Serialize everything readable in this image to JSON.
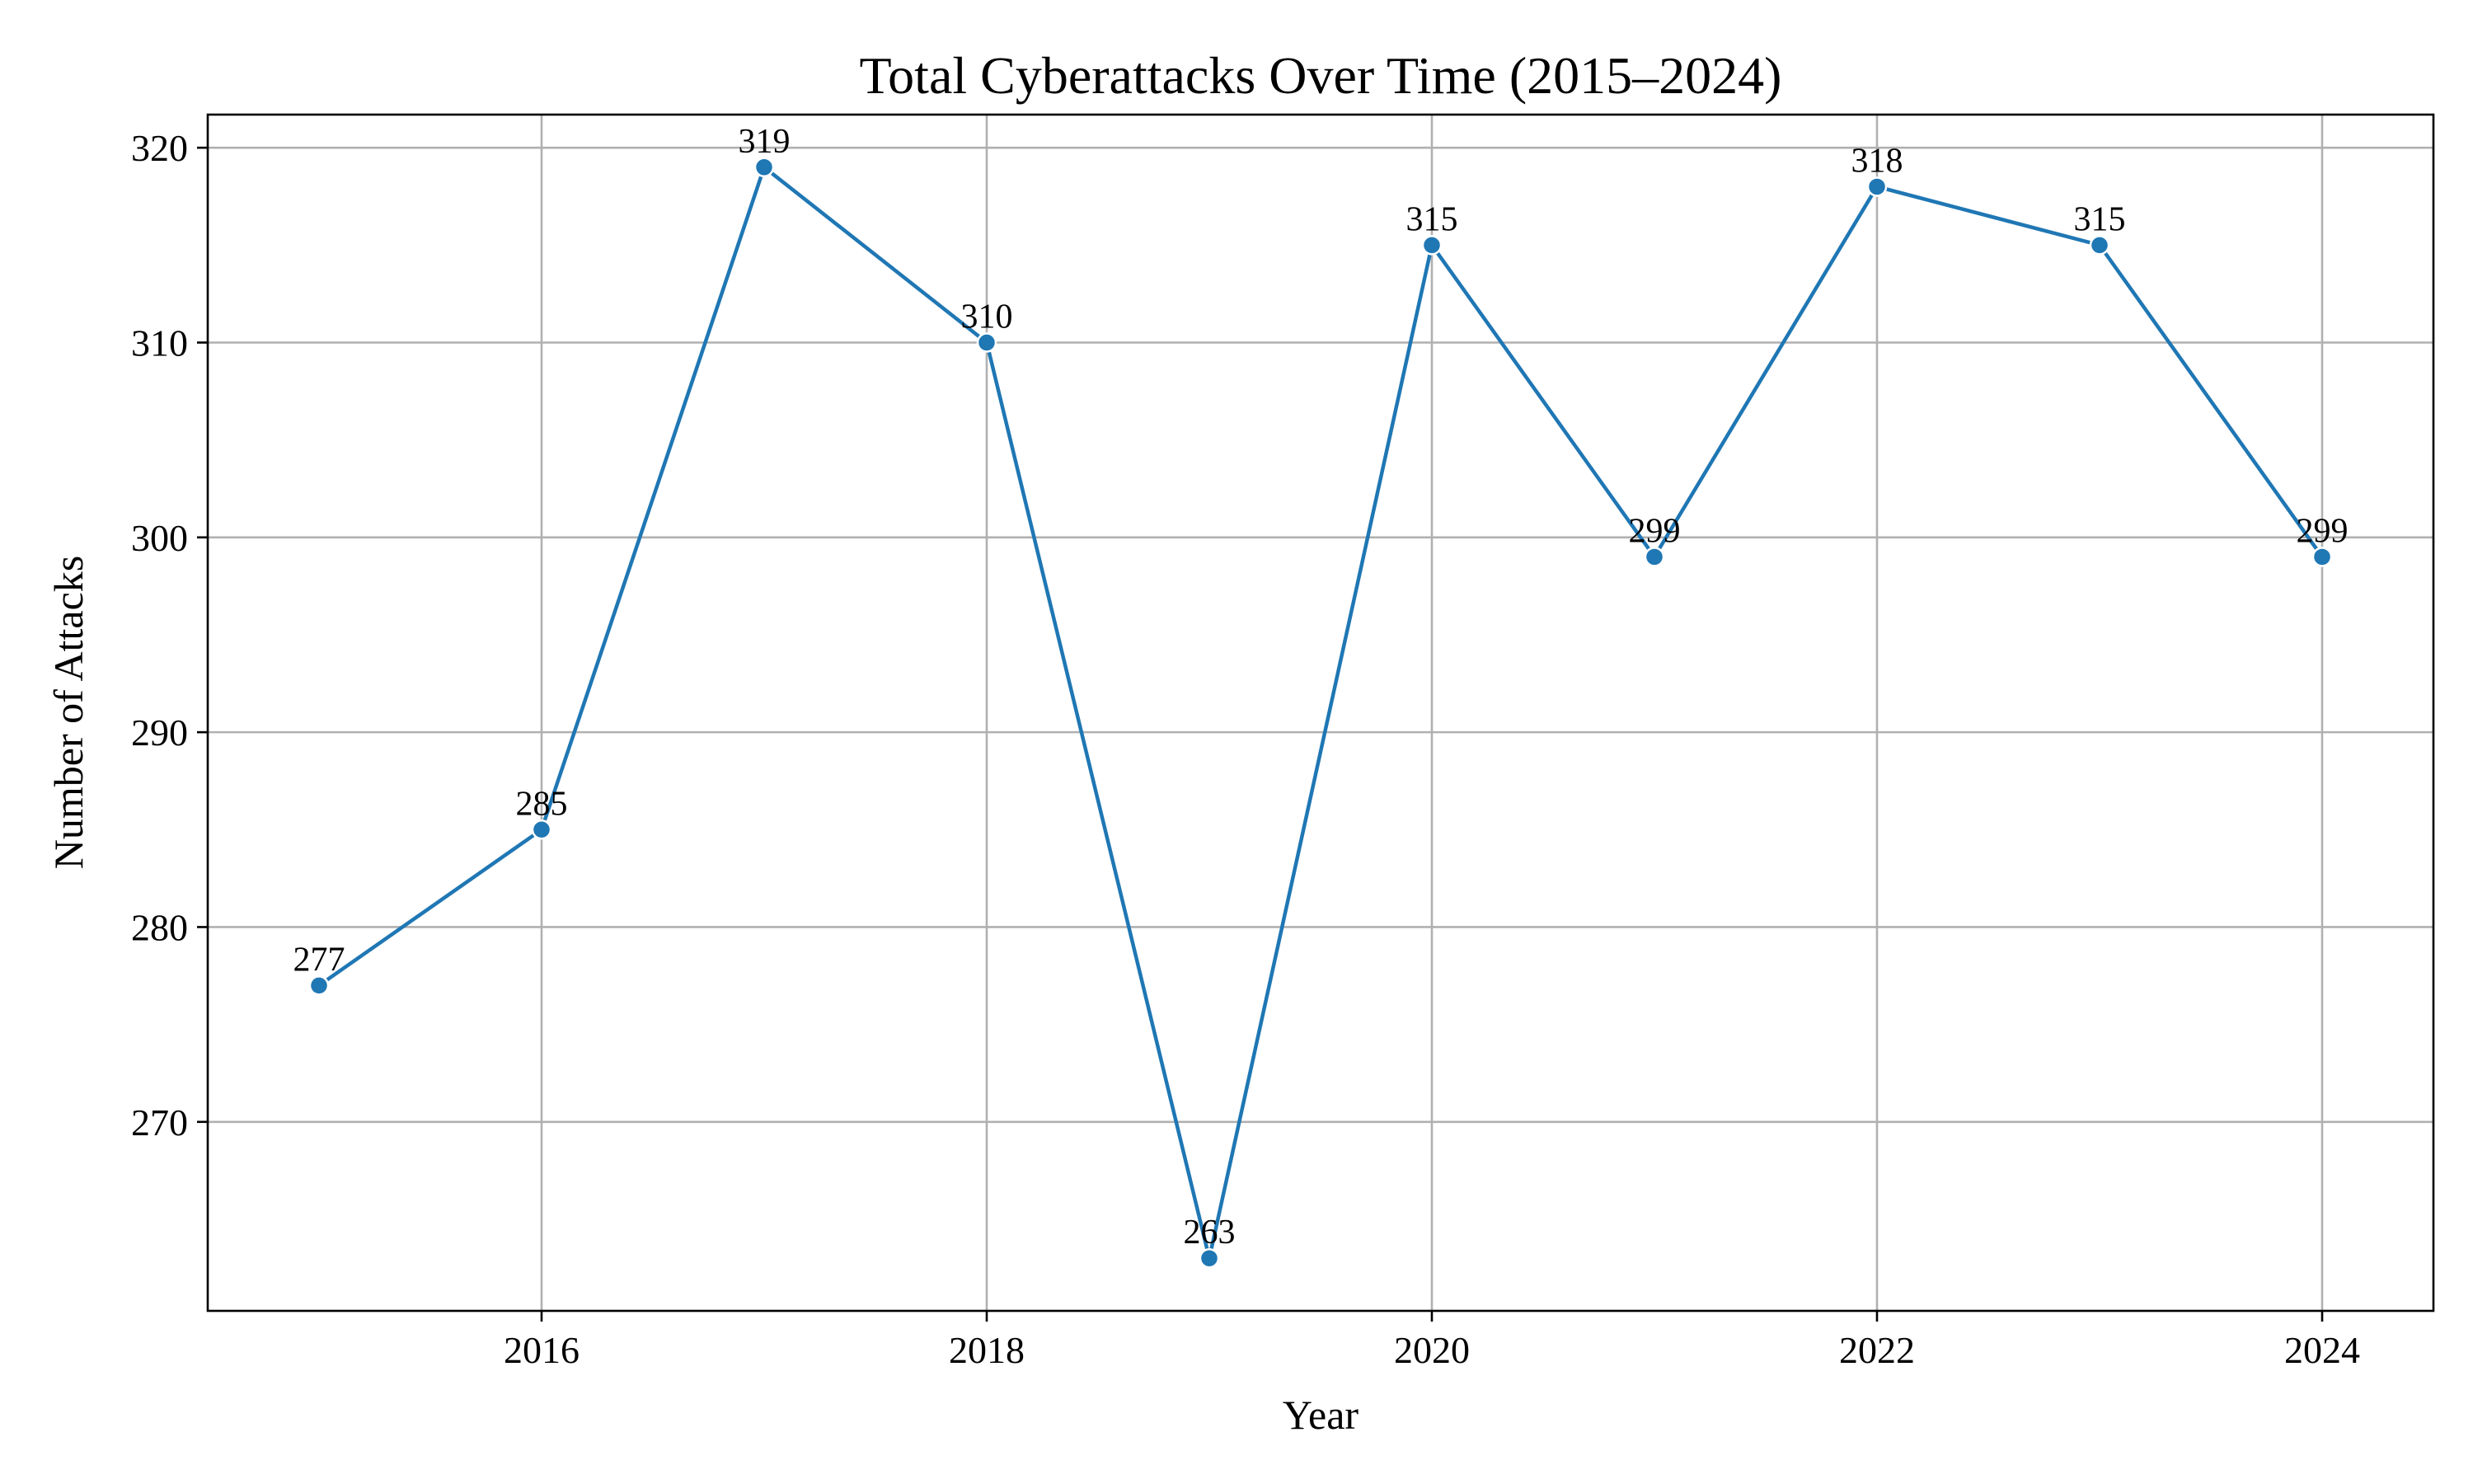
{
  "chart_data": {
    "type": "line",
    "title": "Total Cyberattacks Over Time (2015–2024)",
    "xlabel": "Year",
    "ylabel": "Number of Attacks",
    "x": [
      2015,
      2016,
      2017,
      2018,
      2019,
      2020,
      2021,
      2022,
      2023,
      2024
    ],
    "series": [
      {
        "values": [
          277,
          285,
          319,
          310,
          263,
          315,
          299,
          318,
          315,
          299
        ],
        "color": "#1f77b4",
        "marker": "circle"
      }
    ],
    "data_labels": [
      "277",
      "285",
      "319",
      "310",
      "263",
      "315",
      "299",
      "318",
      "315",
      "299"
    ],
    "xlim": [
      2014.5,
      2024.5
    ],
    "ylim": [
      260.3,
      321.7
    ],
    "xticks": [
      2016,
      2018,
      2020,
      2022,
      2024
    ],
    "xtick_labels": [
      "2016",
      "2018",
      "2020",
      "2022",
      "2024"
    ],
    "yticks": [
      270,
      280,
      290,
      300,
      310,
      320
    ],
    "ytick_labels": [
      "270",
      "280",
      "290",
      "300",
      "310",
      "320"
    ],
    "grid": true,
    "legend": "none"
  }
}
